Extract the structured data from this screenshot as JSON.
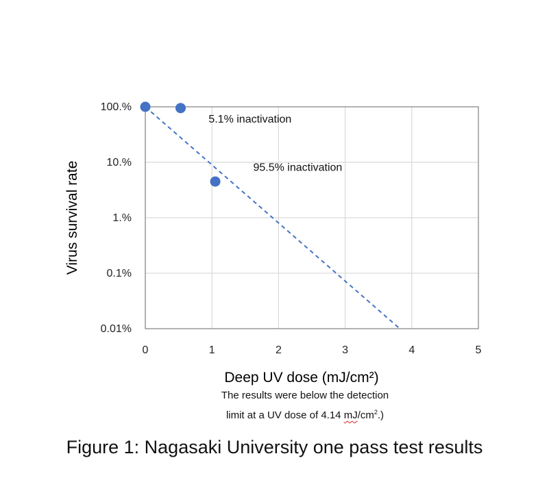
{
  "chart_data": {
    "type": "scatter",
    "title": "",
    "xlabel": "Deep UV dose (mJ/cm²)",
    "ylabel": "Virus survival rate",
    "x_ticks": [
      "0",
      "1",
      "2",
      "3",
      "4",
      "5"
    ],
    "y_ticks": [
      "0.01%",
      "0.1%",
      "1.%",
      "10.%",
      "100.%"
    ],
    "xlim": [
      0,
      5
    ],
    "ylim": [
      0.01,
      100
    ],
    "y_scale": "log",
    "grid": true,
    "legend": "none",
    "series": [
      {
        "x": [
          0,
          0.53,
          1.05
        ],
        "y": [
          100,
          94.9,
          4.5
        ],
        "color": "#4472c4"
      }
    ],
    "trendline": {
      "style": "dashed",
      "color": "#4472c4",
      "x": [
        0,
        3.82
      ],
      "y": [
        100,
        0.01
      ]
    },
    "annotations": [
      {
        "text": "5.1% inactivation",
        "x": 0.95,
        "y": 52
      },
      {
        "text": "95.5% inactivation",
        "x": 1.62,
        "y": 7.0
      }
    ]
  },
  "notes": {
    "line1": "The results were below the detection",
    "line2_before": "limit at a UV dose of 4.14 ",
    "line2_unit_base": "mJ",
    "line2_unit_rest": "/cm",
    "line2_sup": "2",
    "line2_end": ".)"
  },
  "caption": "Figure 1:  Nagasaki University one pass test results"
}
